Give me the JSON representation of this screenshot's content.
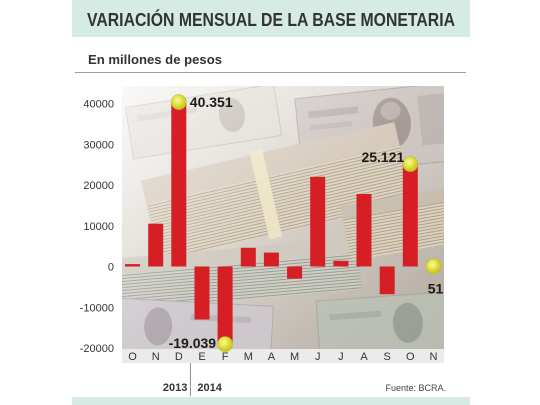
{
  "chart_data": {
    "type": "bar",
    "title": "VARIACIÓN MENSUAL DE LA BASE MONETARIA",
    "subtitle": "En millones de pesos",
    "xlabel": "",
    "ylabel": "",
    "categories": [
      "O",
      "N",
      "D",
      "E",
      "F",
      "M",
      "A",
      "M",
      "J",
      "J",
      "A",
      "S",
      "O",
      "N"
    ],
    "year_groups": [
      {
        "label": "2013",
        "first_index": 0
      },
      {
        "label": "2014",
        "first_index": 3
      }
    ],
    "values": [
      600,
      10500,
      40351,
      -13000,
      -19039,
      4600,
      3400,
      -3000,
      22000,
      1400,
      17800,
      -6800,
      25121,
      51
    ],
    "data_labels": [
      null,
      null,
      "40.351",
      null,
      "-19.039",
      null,
      null,
      null,
      null,
      null,
      null,
      null,
      "25.121",
      "51"
    ],
    "y_ticks": [
      40000,
      30000,
      20000,
      10000,
      0,
      -10000,
      -20000
    ],
    "ylim": [
      -20000,
      40000
    ],
    "grid": false,
    "source": "Fuente: BCRA.",
    "colors": {
      "bar": "#d61e25",
      "highlight_marker": "#e2e03a",
      "header_band": "#d6ebe3"
    }
  }
}
